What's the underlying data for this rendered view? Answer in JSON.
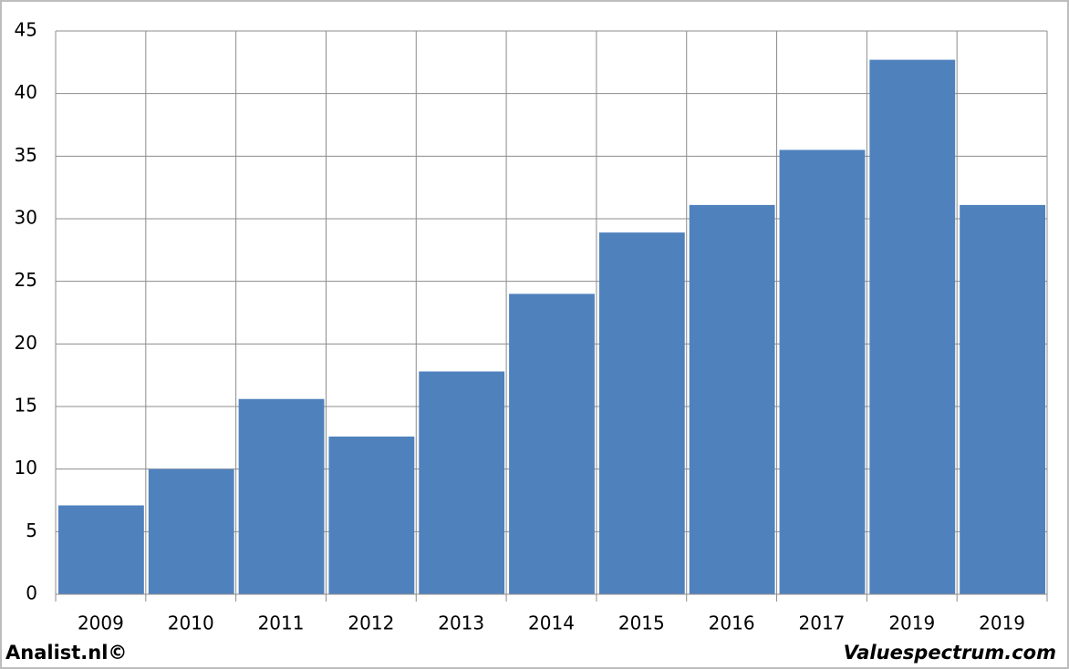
{
  "chart_data": {
    "type": "bar",
    "categories": [
      "2009",
      "2010",
      "2011",
      "2012",
      "2013",
      "2014",
      "2015",
      "2016",
      "2017",
      "2019",
      "2019"
    ],
    "values": [
      7.1,
      10,
      15.6,
      12.6,
      17.8,
      24,
      28.9,
      31.1,
      35.5,
      42.7,
      31.1
    ],
    "color": "#4f81bd",
    "ylim": [
      0,
      45
    ],
    "yticks": [
      0,
      5,
      10,
      15,
      20,
      25,
      30,
      35,
      40,
      45
    ],
    "grid": true
  },
  "footer": {
    "left": "Analist.nl©",
    "right": "Valuespectrum.com"
  }
}
